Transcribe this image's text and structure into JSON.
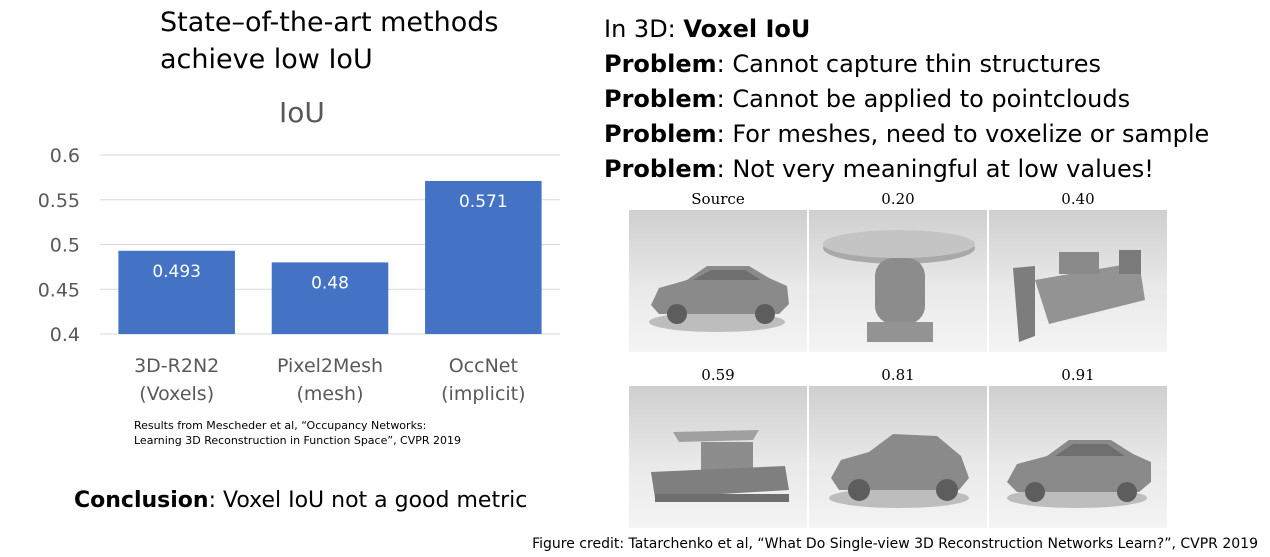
{
  "title": {
    "line1": "State–of-the-art methods",
    "line2": "achieve low IoU"
  },
  "chart_data": {
    "type": "bar",
    "title": "IoU",
    "categories": [
      [
        "3D-R2N2",
        "(Voxels)"
      ],
      [
        "Pixel2Mesh",
        "(mesh)"
      ],
      [
        "OccNet",
        "(implicit)"
      ]
    ],
    "values": [
      0.493,
      0.48,
      0.571
    ],
    "data_labels": [
      "0.493",
      "0.48",
      "0.571"
    ],
    "ylim": [
      0.4,
      0.6
    ],
    "yticks": [
      "0.4",
      "0.45",
      "0.5",
      "0.55",
      "0.6"
    ],
    "grid": true,
    "bar_color": "#4472C4"
  },
  "citation": {
    "line1": "Results from Mescheder et al, “Occupancy Networks:",
    "line2": "Learning 3D Reconstruction in Function Space”, CVPR 2019"
  },
  "conclusion": {
    "label": "Conclusion",
    "text": ": Voxel IoU not a good metric"
  },
  "right": {
    "heading_prefix": "In 3D: ",
    "heading_bold": "Voxel IoU",
    "problems": [
      {
        "label": "Problem",
        "text": ": Cannot capture thin structures"
      },
      {
        "label": "Problem",
        "text": ": Cannot be applied to pointclouds"
      },
      {
        "label": "Problem",
        "text": ": For meshes, need to voxelize or sample"
      },
      {
        "label": "Problem",
        "text": ": Not very meaningful at low values!"
      }
    ]
  },
  "figure": {
    "labels": [
      "Source",
      "0.20",
      "0.40",
      "0.59",
      "0.81",
      "0.91"
    ]
  },
  "credit": "Figure credit: Tatarchenko et al, “What Do Single-view 3D Reconstruction Networks Learn?”, CVPR 2019"
}
